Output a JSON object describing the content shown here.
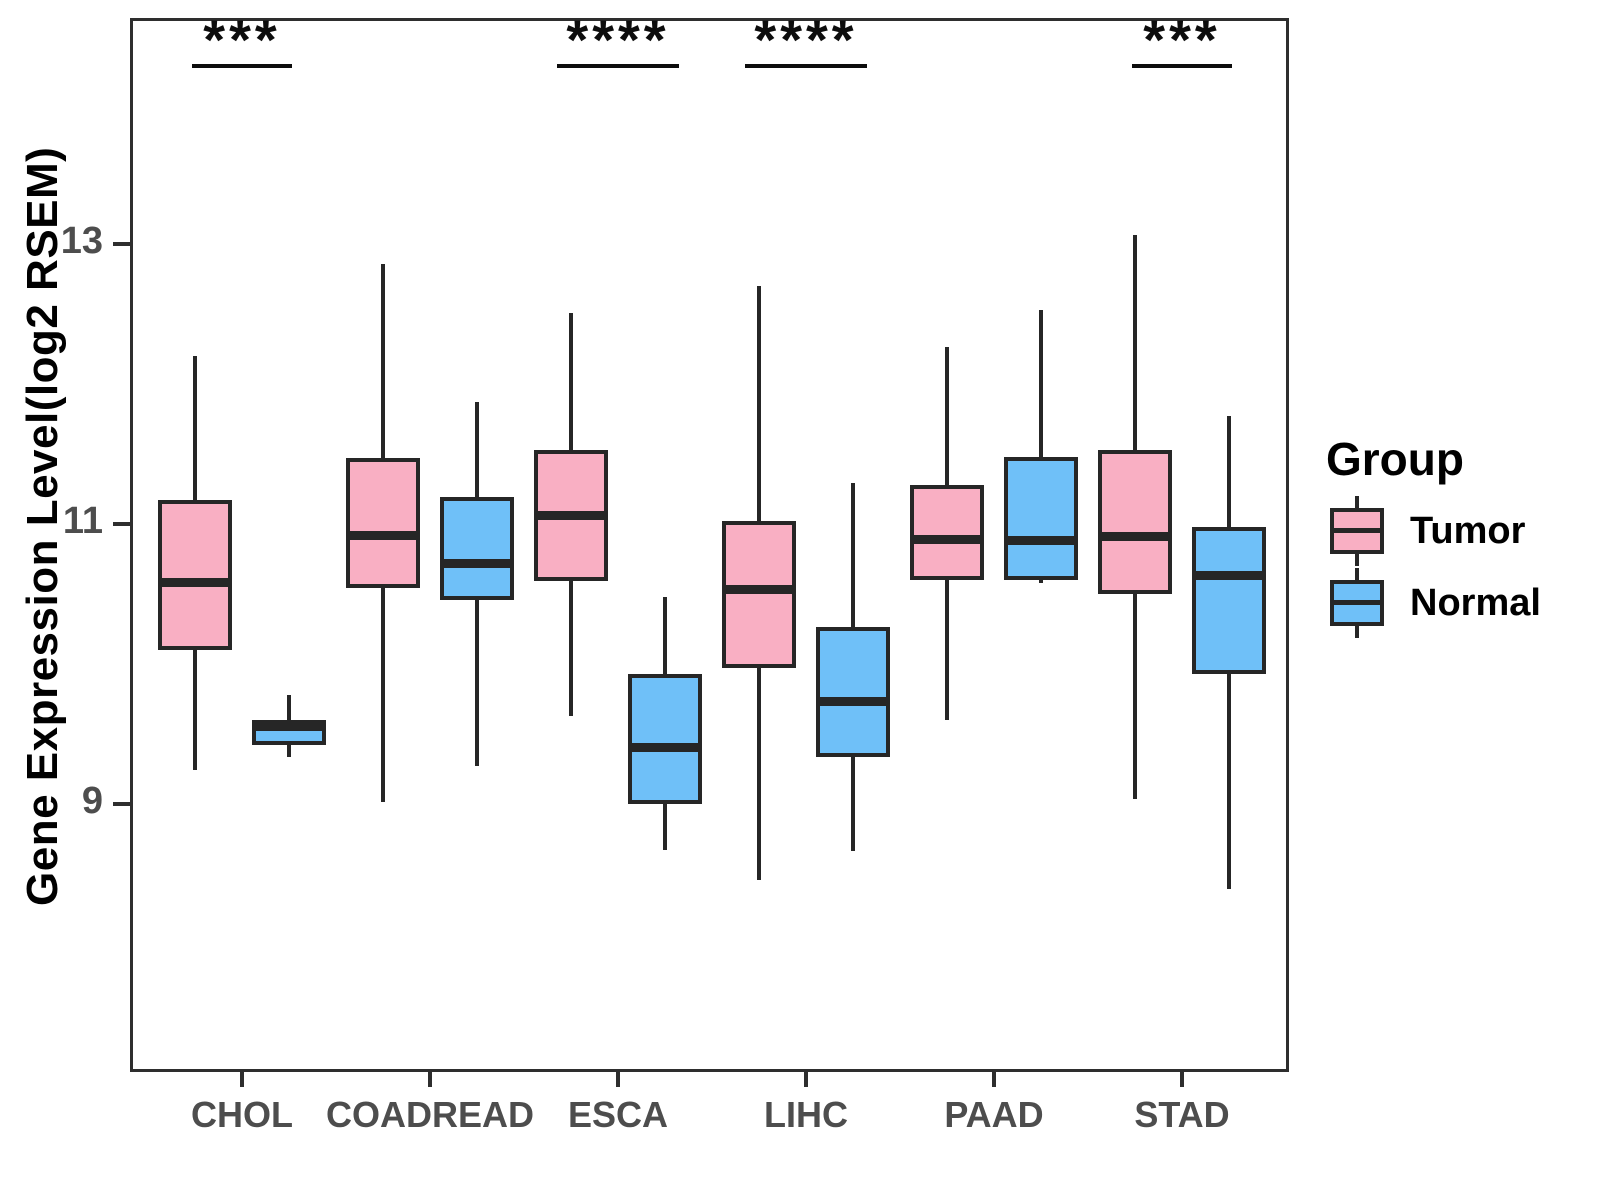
{
  "chart_data": {
    "type": "boxplot",
    "title": "",
    "xlabel": "",
    "ylabel": "Gene Expression Level(log2 RSEM)",
    "y_ticks": [
      9,
      11,
      13
    ],
    "y_range": [
      7.08,
      14.62
    ],
    "grid": "off",
    "legend_position": "right",
    "categories": [
      "CHOL",
      "COADREAD",
      "ESCA",
      "LIHC",
      "PAAD",
      "STAD"
    ],
    "groups": [
      {
        "name": "Tumor",
        "color": "#F9AFC3"
      },
      {
        "name": "Normal",
        "color": "#6FC0F8"
      }
    ],
    "series": [
      {
        "group": "Tumor",
        "values": [
          {
            "category": "CHOL",
            "whisker_low": 9.24,
            "q1": 10.1,
            "median": 10.58,
            "q3": 11.17,
            "whisker_high": 12.2
          },
          {
            "category": "COADREAD",
            "whisker_low": 9.01,
            "q1": 10.54,
            "median": 10.92,
            "q3": 11.47,
            "whisker_high": 12.86
          },
          {
            "category": "ESCA",
            "whisker_low": 9.63,
            "q1": 10.59,
            "median": 11.06,
            "q3": 11.53,
            "whisker_high": 12.51
          },
          {
            "category": "LIHC",
            "whisker_low": 8.45,
            "q1": 9.97,
            "median": 10.53,
            "q3": 11.02,
            "whisker_high": 12.7
          },
          {
            "category": "PAAD",
            "whisker_low": 9.6,
            "q1": 10.6,
            "median": 10.89,
            "q3": 11.28,
            "whisker_high": 12.27
          },
          {
            "category": "STAD",
            "whisker_low": 9.03,
            "q1": 10.5,
            "median": 10.91,
            "q3": 11.53,
            "whisker_high": 13.07
          }
        ]
      },
      {
        "group": "Normal",
        "values": [
          {
            "category": "CHOL",
            "whisker_low": 9.33,
            "q1": 9.42,
            "median": 9.55,
            "q3": 9.6,
            "whisker_high": 9.78
          },
          {
            "category": "COADREAD",
            "whisker_low": 9.27,
            "q1": 10.46,
            "median": 10.72,
            "q3": 11.19,
            "whisker_high": 11.87
          },
          {
            "category": "ESCA",
            "whisker_low": 8.67,
            "q1": 9.0,
            "median": 9.4,
            "q3": 9.93,
            "whisker_high": 10.48
          },
          {
            "category": "LIHC",
            "whisker_low": 8.66,
            "q1": 9.33,
            "median": 9.73,
            "q3": 10.26,
            "whisker_high": 11.29
          },
          {
            "category": "PAAD",
            "whisker_low": 10.58,
            "q1": 10.6,
            "median": 10.88,
            "q3": 11.48,
            "whisker_high": 12.53
          },
          {
            "category": "STAD",
            "whisker_low": 8.39,
            "q1": 9.93,
            "median": 10.63,
            "q3": 10.98,
            "whisker_high": 11.77
          }
        ]
      }
    ],
    "significance": [
      {
        "category": "CHOL",
        "label": "***"
      },
      {
        "category": "ESCA",
        "label": "****"
      },
      {
        "category": "LIHC",
        "label": "****"
      },
      {
        "category": "STAD",
        "label": "***"
      }
    ],
    "legend": {
      "title": "Group",
      "entries": [
        "Tumor",
        "Normal"
      ]
    }
  },
  "colors": {
    "tumor_fill": "#F9AFC3",
    "normal_fill": "#6FC0F8",
    "box_border": "#262626",
    "panel_border": "#2e2e2e",
    "tick_text": "#4d4d4d",
    "axis_title_text": "#000000",
    "significance_text": "#0d0d0d",
    "background": "#ffffff"
  }
}
